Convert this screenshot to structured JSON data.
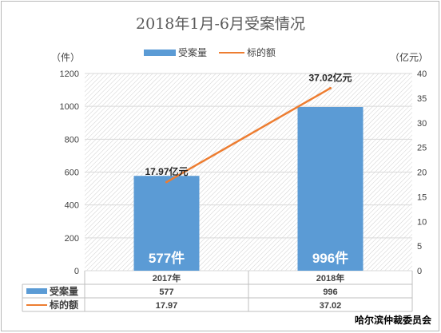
{
  "chart_data": {
    "type": "bar",
    "title": "2018年1月-6月受案情况",
    "categories": [
      "2017年",
      "2018年"
    ],
    "series": [
      {
        "name": "受案量",
        "type": "bar",
        "axis": "left",
        "values": [
          577,
          996
        ],
        "value_labels": [
          "577件",
          "996件"
        ],
        "table_values": [
          "577",
          "996"
        ],
        "color": "#5b9bd5"
      },
      {
        "name": "标的额",
        "type": "line",
        "axis": "right",
        "values": [
          17.97,
          37.02
        ],
        "value_labels": [
          "17.97亿元",
          "37.02亿元"
        ],
        "table_values": [
          "17.97",
          "37.02"
        ],
        "color": "#ed7d31"
      }
    ],
    "y_left": {
      "unit": "（件）",
      "min": 0,
      "max": 1200,
      "step": 200
    },
    "y_right": {
      "unit": "（亿元）",
      "min": 0,
      "max": 40,
      "step": 5
    },
    "legend_position": "top-center",
    "grid": true,
    "data_table": true
  },
  "footer": "哈尔滨仲裁委员会"
}
